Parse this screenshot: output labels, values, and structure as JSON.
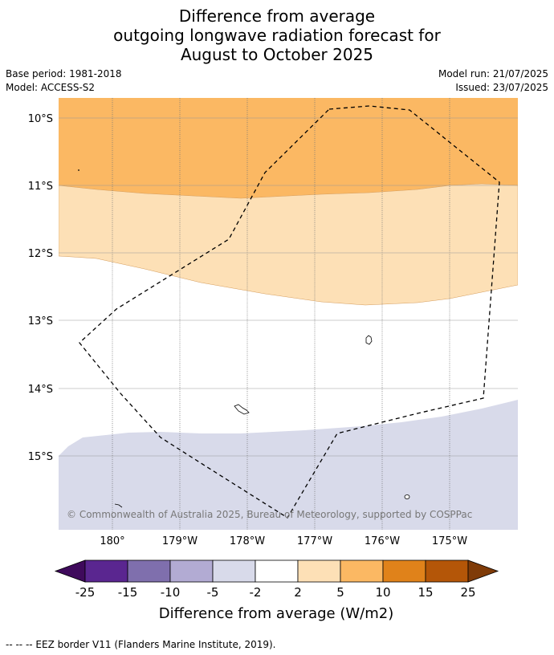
{
  "title": {
    "line1": "Difference from average",
    "line2": "outgoing longwave radiation forecast for",
    "line3": "August to October 2025"
  },
  "meta": {
    "base_period": "Base period: 1981-2018",
    "model": "Model: ACCESS-S2",
    "model_run": "Model run: 21/07/2025",
    "issued": "Issued: 23/07/2025"
  },
  "map": {
    "lat_labels": [
      "10°S",
      "11°S",
      "12°S",
      "13°S",
      "14°S",
      "15°S"
    ],
    "lon_labels": [
      "180°",
      "179°W",
      "178°W",
      "177°W",
      "176°W",
      "175°W"
    ],
    "copyright": "© Commonwealth of Australia 2025, Bureau of Meteorology, supported by COSPPac"
  },
  "colorbar": {
    "ticks": [
      "-25",
      "-15",
      "-10",
      "-5",
      "-2",
      "2",
      "5",
      "10",
      "15",
      "25"
    ],
    "label": "Difference from average (W/m2)",
    "colors": [
      "#3f0a5c",
      "#5a2690",
      "#7f6fad",
      "#b2abd3",
      "#d8daea",
      "#ffffff",
      "#fde0b6",
      "#fbb863",
      "#e0821a",
      "#b45608",
      "#7f3b08"
    ]
  },
  "legend": {
    "eez": "--  --  -- EEZ border V11 (Flanders Marine Institute, 2019)."
  }
}
